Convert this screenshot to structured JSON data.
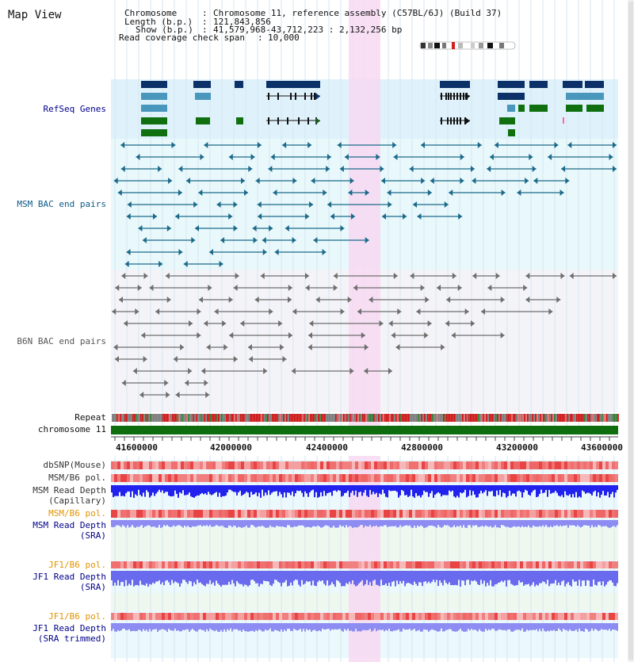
{
  "view_title": "Map View",
  "info": {
    "chromosome_label": "Chromosome",
    "chromosome_value": "Chromosome 11, reference assembly (C57BL/6J) (Build 37)",
    "length_label": "Length (b.p.)",
    "length_value": "121,843,856",
    "show_label": "Show (b.p.)",
    "show_value": "41,579,968-43,712,223 : 2,132,256 bp",
    "coverage_label": "Read coverage check span",
    "coverage_value": "10,000"
  },
  "tracks": {
    "refseq": "RefSeq Genes",
    "msm_bac": "MSM BAC end pairs",
    "b6n_bac": "B6N BAC end pairs",
    "repeat": "Repeat",
    "chromosome": "chromosome 11",
    "dbsnp": "dbSNP(Mouse)",
    "msm_b6_pol_1": "MSM/B6 pol.",
    "msm_depth_cap_1": "MSM Read Depth",
    "msm_depth_cap_2": "(Capillary)",
    "msm_b6_pol_2": "MSM/B6 pol.",
    "msm_depth_sra_1": "MSM Read Depth",
    "msm_depth_sra_2": "(SRA)",
    "jf1_b6_pol_1": "JF1/B6 pol.",
    "jf1_depth_sra_1": "JF1 Read Depth",
    "jf1_depth_sra_2": "(SRA)",
    "jf1_b6_pol_2": "JF1/B6 pol.",
    "jf1_depth_trim_1": "JF1 Read Depth",
    "jf1_depth_trim_2": "(SRA trimmed)"
  },
  "axis_ticks": [
    "41600000",
    "42000000",
    "42400000",
    "42800000",
    "43200000",
    "43600000"
  ],
  "colors": {
    "refseq_bg": "#dff2fb",
    "msm_bg": "#e8f8fb",
    "b6n_bg": "#f4f4f8",
    "highlight": "#f7d9f2",
    "gene_dark": "#0c3068",
    "gene_mid": "#4a97bd",
    "gene_green": "#107010",
    "msm_pair": "#1b6a8a",
    "b6n_pair": "#6e6e6e",
    "chromosome_bar": "#0e6e0e",
    "depth_blue": "#2222ee",
    "depth_light": "#8c8cf2",
    "label_blue": "#00008b",
    "label_teal": "#0a5a88",
    "label_orange": "#e29300"
  }
}
